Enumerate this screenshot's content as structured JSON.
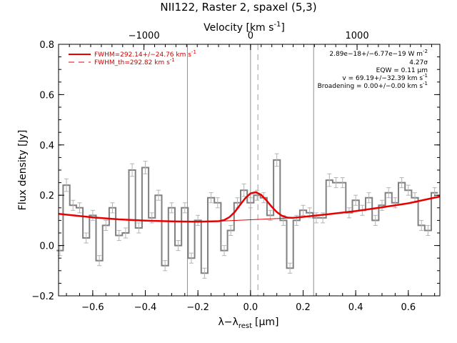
{
  "chart_data": {
    "type": "line",
    "title": "NII122, Raster 2, spaxel (5,3)",
    "xlabel": "λ−λ",
    "xlabel_sub": "rest",
    "xlabel_unit": "[μm]",
    "ylabel": "Flux density [Jy]",
    "top_xlabel": "Velocity [km s",
    "top_xlabel_sup": "-1",
    "top_xlabel_end": "]",
    "xlim": [
      -0.73,
      0.72
    ],
    "ylim": [
      -0.2,
      0.8
    ],
    "x_ticks": [
      -0.6,
      -0.4,
      -0.2,
      0.0,
      0.2,
      0.4,
      0.6
    ],
    "x_tick_labels": [
      "−0.6",
      "−0.4",
      "−0.2",
      "0.0",
      "0.2",
      "0.4",
      "0.6"
    ],
    "y_ticks": [
      -0.2,
      0.0,
      0.2,
      0.4,
      0.6,
      0.8
    ],
    "y_tick_labels": [
      "−0.2",
      "0.0",
      "0.2",
      "0.4",
      "0.6",
      "0.8"
    ],
    "top_ticks": [
      -1000,
      0,
      1000
    ],
    "top_tick_labels": [
      "−1000",
      "0",
      "1000"
    ],
    "velocity_per_um": 2468,
    "vertical_lines": [
      -0.24,
      0.0,
      0.24
    ],
    "dashed_line": 0.028,
    "series": [
      {
        "name": "data",
        "style": "step",
        "x": [
          -0.725,
          -0.7,
          -0.675,
          -0.65,
          -0.625,
          -0.6,
          -0.575,
          -0.55,
          -0.525,
          -0.5,
          -0.475,
          -0.45,
          -0.425,
          -0.4,
          -0.375,
          -0.35,
          -0.325,
          -0.3,
          -0.275,
          -0.25,
          -0.225,
          -0.2,
          -0.175,
          -0.15,
          -0.125,
          -0.1,
          -0.075,
          -0.05,
          -0.025,
          0.0,
          0.025,
          0.05,
          0.075,
          0.1,
          0.125,
          0.15,
          0.175,
          0.2,
          0.225,
          0.25,
          0.275,
          0.3,
          0.325,
          0.35,
          0.375,
          0.4,
          0.425,
          0.45,
          0.475,
          0.5,
          0.525,
          0.55,
          0.575,
          0.6,
          0.625,
          0.65,
          0.675,
          0.7
        ],
        "y": [
          -0.02,
          0.24,
          0.16,
          0.15,
          0.03,
          0.12,
          -0.06,
          0.08,
          0.15,
          0.04,
          0.05,
          0.3,
          0.07,
          0.31,
          0.11,
          0.2,
          -0.08,
          0.15,
          0.0,
          0.15,
          -0.05,
          0.1,
          -0.11,
          0.19,
          0.17,
          -0.02,
          0.06,
          0.17,
          0.22,
          0.17,
          0.2,
          0.19,
          0.12,
          0.34,
          0.1,
          -0.09,
          0.1,
          0.14,
          0.13,
          0.11,
          0.11,
          0.26,
          0.25,
          0.25,
          0.13,
          0.18,
          0.14,
          0.19,
          0.1,
          0.16,
          0.21,
          0.17,
          0.25,
          0.22,
          0.19,
          0.08,
          0.06,
          0.21
        ],
        "err": [
          0.02,
          0.025,
          0.02,
          0.02,
          0.02,
          0.02,
          0.02,
          0.02,
          0.02,
          0.02,
          0.02,
          0.025,
          0.02,
          0.025,
          0.02,
          0.02,
          0.02,
          0.02,
          0.02,
          0.02,
          0.02,
          0.02,
          0.02,
          0.02,
          0.02,
          0.02,
          0.02,
          0.02,
          0.025,
          0.02,
          0.02,
          0.02,
          0.02,
          0.025,
          0.02,
          0.02,
          0.02,
          0.02,
          0.02,
          0.02,
          0.02,
          0.025,
          0.02,
          0.02,
          0.02,
          0.02,
          0.02,
          0.02,
          0.02,
          0.02,
          0.02,
          0.02,
          0.02,
          0.02,
          0.02,
          0.02,
          0.02,
          0.02
        ]
      },
      {
        "name": "FWHM=292.14+/−24.76 km s",
        "name_sup": "-1",
        "style": "fit",
        "color": "#e60000",
        "x": [
          -0.73,
          -0.6,
          -0.5,
          -0.4,
          -0.3,
          -0.2,
          -0.12,
          -0.1,
          -0.08,
          -0.06,
          -0.04,
          -0.02,
          0.0,
          0.02,
          0.04,
          0.06,
          0.08,
          0.1,
          0.12,
          0.14,
          0.16,
          0.2,
          0.3,
          0.4,
          0.5,
          0.6,
          0.72
        ],
        "y": [
          0.126,
          0.112,
          0.104,
          0.099,
          0.096,
          0.095,
          0.097,
          0.101,
          0.113,
          0.133,
          0.161,
          0.188,
          0.207,
          0.212,
          0.202,
          0.18,
          0.155,
          0.133,
          0.118,
          0.111,
          0.11,
          0.114,
          0.125,
          0.137,
          0.152,
          0.168,
          0.195
        ]
      },
      {
        "name": "FWHM_th=292.82 km s",
        "name_sup": "-1",
        "style": "dashed",
        "color": "#e60000",
        "x": [
          -0.12,
          0.16
        ],
        "y": [
          0.097,
          0.11
        ]
      }
    ],
    "annotations": [
      {
        "text": "2.89e−18+/−6.77e−19 W m",
        "sup": "-2"
      },
      {
        "text": "4.27σ",
        "sup": ""
      },
      {
        "text": "EQW = 0.11 μm",
        "sup": ""
      },
      {
        "text": "v = 69.19+/−32.39 km s",
        "sup": "-1"
      },
      {
        "text": "Broadening = 0.00+/−0.00 km s",
        "sup": "-1"
      }
    ],
    "colors": {
      "data": "#808080",
      "error": "#b4b4b4",
      "fit": "#e60000",
      "vlines": "#909090"
    }
  }
}
